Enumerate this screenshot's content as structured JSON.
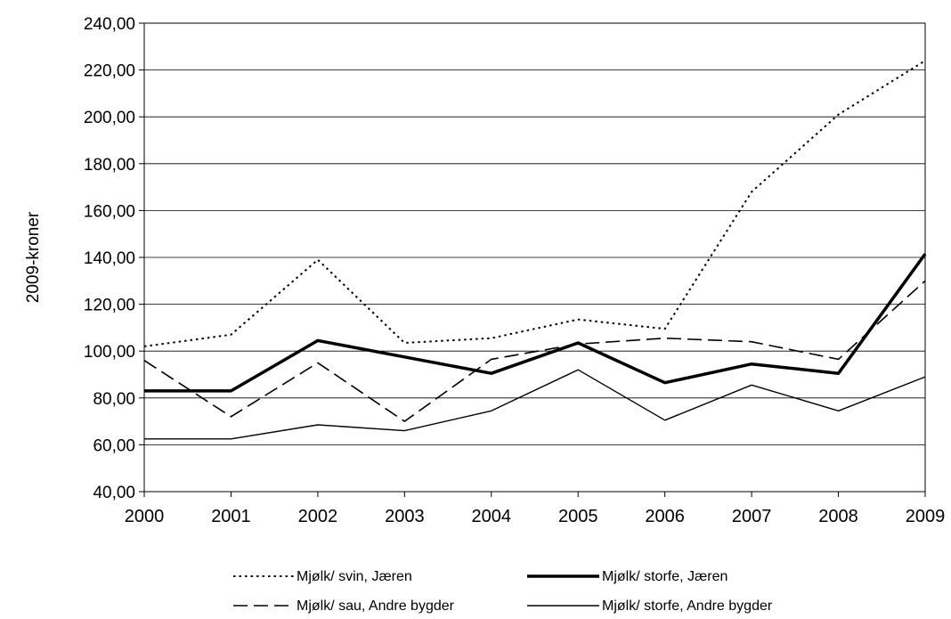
{
  "chart_data": {
    "type": "line",
    "title": "",
    "xlabel": "",
    "ylabel": "2009-kroner",
    "x": [
      "2000",
      "2001",
      "2002",
      "2003",
      "2004",
      "2005",
      "2006",
      "2007",
      "2008",
      "2009"
    ],
    "ylim": [
      40,
      240
    ],
    "yticks": [
      "40,00",
      "60,00",
      "80,00",
      "100,00",
      "120,00",
      "140,00",
      "160,00",
      "180,00",
      "200,00",
      "220,00",
      "240,00"
    ],
    "grid": true,
    "legend_position": "bottom",
    "series": [
      {
        "name": "Mjølk/ svin, Jæren",
        "style": "dotted",
        "values": [
          102,
          107,
          139,
          103.5,
          105.5,
          113.5,
          109.5,
          168,
          201,
          224
        ]
      },
      {
        "name": "Mjølk/ storfe, Jæren",
        "style": "thick",
        "values": [
          83,
          83,
          104.5,
          97.5,
          90.5,
          103.5,
          86.5,
          94.5,
          90.5,
          141.5
        ]
      },
      {
        "name": "Mjølk/ sau, Andre bygder",
        "style": "dashed",
        "values": [
          96,
          72,
          95,
          70,
          96.5,
          103,
          105.5,
          104,
          96.5,
          130
        ]
      },
      {
        "name": "Mjølk/ storfe, Andre bygder",
        "style": "thin",
        "values": [
          62.5,
          62.5,
          68.5,
          66,
          74.5,
          92,
          70.5,
          85.5,
          74.5,
          89
        ]
      }
    ]
  }
}
